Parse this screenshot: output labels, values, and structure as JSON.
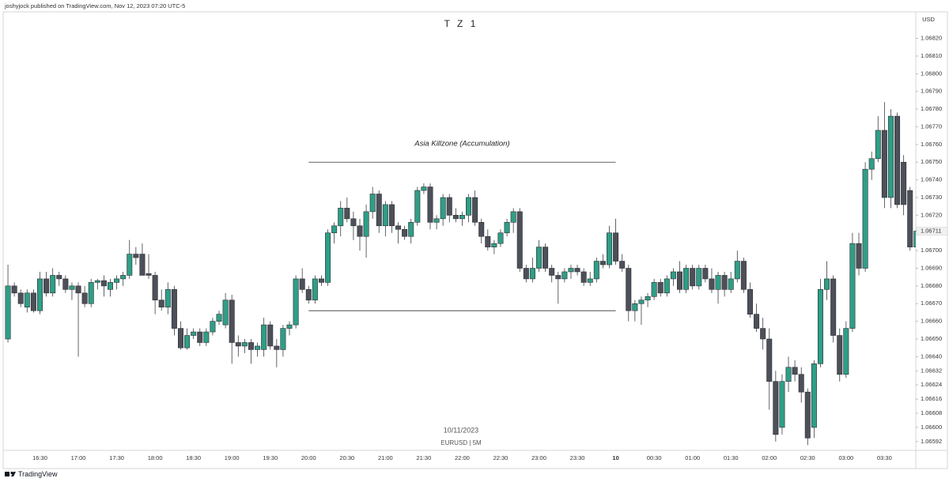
{
  "header": {
    "publisher": "joshyjock published on TradingView.com, Nov 12, 2023 07:20 UTC-5"
  },
  "footer": {
    "brand": "TradingView"
  },
  "chart_data": {
    "type": "candlestick",
    "title": "T Z 1",
    "date_label": "10/11/2023",
    "symbol_label": "EURUSD | 5M",
    "currency": "USD",
    "up_color": "#2f9e86",
    "down_color": "#4d5059",
    "grid": false,
    "ylim": [
      1.06587,
      1.06835
    ],
    "yticks": [
      {
        "value": 1.0682,
        "label": "1.06820"
      },
      {
        "value": 1.0681,
        "label": "1.06810"
      },
      {
        "value": 1.068,
        "label": "1.06800"
      },
      {
        "value": 1.0679,
        "label": "1.06790"
      },
      {
        "value": 1.0678,
        "label": "1.06780"
      },
      {
        "value": 1.0677,
        "label": "1.06770"
      },
      {
        "value": 1.0676,
        "label": "1.06760"
      },
      {
        "value": 1.0675,
        "label": "1.06750"
      },
      {
        "value": 1.0674,
        "label": "1.06740"
      },
      {
        "value": 1.0673,
        "label": "1.06730"
      },
      {
        "value": 1.0672,
        "label": "1.06720"
      },
      {
        "value": 1.067,
        "label": "1.06700"
      },
      {
        "value": 1.0669,
        "label": "1.06690"
      },
      {
        "value": 1.0668,
        "label": "1.06680"
      },
      {
        "value": 1.0667,
        "label": "1.06670"
      },
      {
        "value": 1.0666,
        "label": "1.06660"
      },
      {
        "value": 1.0665,
        "label": "1.06650"
      },
      {
        "value": 1.0664,
        "label": "1.06640"
      },
      1.06632,
      1.06624,
      1.06616,
      1.06608,
      {
        "value": 1.066,
        "label": "1.06600"
      },
      1.06592
    ],
    "last_price": 1.06711,
    "last_price_label": "1.06711",
    "zone": {
      "label": "Asia Killzone (Accumulation)",
      "high": 1.0675,
      "low": 1.06666
    },
    "categories": [
      null,
      null,
      null,
      null,
      null,
      "16:30",
      null,
      null,
      null,
      null,
      null,
      "17:00",
      null,
      null,
      null,
      null,
      null,
      "17:30",
      null,
      null,
      null,
      null,
      null,
      "18:00",
      null,
      null,
      null,
      null,
      null,
      "18:30",
      null,
      null,
      null,
      null,
      null,
      "19:00",
      null,
      null,
      null,
      null,
      null,
      "19:30",
      null,
      null,
      null,
      null,
      null,
      "20:00",
      null,
      null,
      null,
      null,
      null,
      "20:30",
      null,
      null,
      null,
      null,
      null,
      "21:00",
      null,
      null,
      null,
      null,
      null,
      "21:30",
      null,
      null,
      null,
      null,
      null,
      "22:00",
      null,
      null,
      null,
      null,
      null,
      "22:30",
      null,
      null,
      null,
      null,
      null,
      "23:00",
      null,
      null,
      null,
      null,
      null,
      "23:30",
      null,
      null,
      null,
      null,
      null,
      "10",
      null,
      null,
      null,
      null,
      null,
      "00:30",
      null,
      null,
      null,
      null,
      null,
      "01:00",
      null,
      null,
      null,
      null,
      null,
      "01:30",
      null,
      null,
      null,
      null,
      null,
      "02:00",
      null,
      null,
      null,
      null,
      null,
      "02:30",
      null,
      null,
      null,
      null,
      null,
      "03:00",
      null,
      null,
      null,
      null,
      null,
      "03:30",
      null,
      null,
      null,
      null,
      null
    ],
    "open": [
      1.0665,
      1.0668,
      1.06676,
      1.06668,
      1.06676,
      1.06666,
      1.06684,
      1.06676,
      1.06686,
      1.06684,
      1.06678,
      1.0668,
      1.06676,
      1.0667,
      1.06682,
      1.06683,
      1.06678,
      1.06682,
      1.06684,
      1.06686,
      1.06698,
      1.06698,
      1.06687,
      1.06686,
      1.06672,
      1.06668,
      1.06678,
      1.06656,
      1.06645,
      1.06652,
      1.06654,
      1.06648,
      1.06654,
      1.0666,
      1.06658,
      1.06672,
      1.06648,
      1.06646,
      1.06648,
      1.06644,
      1.06644,
      1.06658,
      1.06646,
      1.06644,
      1.06656,
      1.06658,
      1.06684,
      1.06678,
      1.06672,
      1.06684,
      1.06682,
      1.0671,
      1.06714,
      1.06724,
      1.06718,
      1.06714,
      1.06708,
      1.06722,
      1.06732,
      1.06714,
      1.06726,
      1.06714,
      1.06712,
      1.06708,
      1.06716,
      1.06734,
      1.06736,
      1.06716,
      1.06718,
      1.0673,
      1.0672,
      1.06718,
      1.0672,
      1.0673,
      1.06716,
      1.06708,
      1.06702,
      1.06704,
      1.0671,
      1.06716,
      1.06722,
      1.0669,
      1.06684,
      1.0669,
      1.06702,
      1.0669,
      1.06686,
      1.06684,
      1.06688,
      1.0669,
      1.06688,
      1.06682,
      1.06684,
      1.06694,
      1.06692,
      1.0671,
      1.06694,
      1.0669,
      1.06666,
      1.0667,
      1.06672,
      1.06674,
      1.06682,
      1.06676,
      1.06684,
      1.06688,
      1.06678,
      1.0669,
      1.0668,
      1.0669,
      1.06684,
      1.06678,
      1.06686,
      1.06678,
      1.06684,
      1.06694,
      1.06678,
      1.06664,
      1.06656,
      1.0665,
      1.06626,
      1.066,
      1.06626,
      1.06634,
      1.0663,
      1.0662,
      1.066,
      1.06636,
      1.06678,
      1.06684,
      1.06652,
      1.0663,
      1.06656,
      1.06704,
      1.0669,
      1.06746,
      1.06752,
      1.06768,
      1.0673,
      1.06776,
      1.0675,
      1.06734,
      1.06702
    ],
    "high": [
      1.06692,
      1.06682,
      1.06678,
      1.06678,
      1.06678,
      1.06688,
      1.06688,
      1.0669,
      1.06688,
      1.06686,
      1.06682,
      1.06682,
      1.0668,
      1.06684,
      1.06684,
      1.06686,
      1.06684,
      1.06686,
      1.06688,
      1.06706,
      1.06702,
      1.06704,
      1.06698,
      1.06688,
      1.06678,
      1.06682,
      1.0668,
      1.0666,
      1.06656,
      1.06656,
      1.06656,
      1.06656,
      1.06662,
      1.06666,
      1.06676,
      1.06675,
      1.06652,
      1.0665,
      1.0665,
      1.06648,
      1.06662,
      1.0666,
      1.0665,
      1.06658,
      1.0666,
      1.06686,
      1.0669,
      1.0668,
      1.06686,
      1.06686,
      1.06712,
      1.06716,
      1.06728,
      1.0673,
      1.06722,
      1.06718,
      1.06726,
      1.06736,
      1.06734,
      1.06728,
      1.06728,
      1.06716,
      1.06714,
      1.06718,
      1.06736,
      1.06738,
      1.06738,
      1.0672,
      1.06732,
      1.06732,
      1.06724,
      1.06722,
      1.06732,
      1.06734,
      1.06718,
      1.06712,
      1.06706,
      1.06712,
      1.06718,
      1.06724,
      1.06724,
      1.06692,
      1.06696,
      1.06706,
      1.06704,
      1.06692,
      1.06688,
      1.0669,
      1.06692,
      1.06692,
      1.0669,
      1.06688,
      1.06696,
      1.06698,
      1.06714,
      1.06718,
      1.06698,
      1.06692,
      1.06672,
      1.06674,
      1.06676,
      1.06684,
      1.06684,
      1.06686,
      1.0669,
      1.06694,
      1.06692,
      1.06692,
      1.06692,
      1.06692,
      1.0669,
      1.06688,
      1.06688,
      1.06688,
      1.067,
      1.06696,
      1.06682,
      1.0667,
      1.06662,
      1.06656,
      1.06632,
      1.0663,
      1.0664,
      1.06638,
      1.06634,
      1.06622,
      1.06638,
      1.06684,
      1.06694,
      1.06686,
      1.06656,
      1.0666,
      1.0671,
      1.0671,
      1.0675,
      1.06756,
      1.06776,
      1.06784,
      1.0678,
      1.06778,
      1.06754,
      1.06736,
      1.06712
    ],
    "low": [
      1.06648,
      1.06674,
      1.06668,
      1.06665,
      1.06665,
      1.06664,
      1.06674,
      1.06674,
      1.0668,
      1.06676,
      1.06672,
      1.0664,
      1.06668,
      1.06668,
      1.06678,
      1.06674,
      1.06674,
      1.06678,
      1.0668,
      1.06684,
      1.06692,
      1.06686,
      1.06684,
      1.06664,
      1.06666,
      1.06664,
      1.06652,
      1.06644,
      1.06644,
      1.0665,
      1.06646,
      1.06646,
      1.06652,
      1.06658,
      1.06656,
      1.06636,
      1.0664,
      1.06642,
      1.06636,
      1.0664,
      1.0664,
      1.06644,
      1.06634,
      1.0664,
      1.06652,
      1.06656,
      1.06676,
      1.0667,
      1.0667,
      1.0668,
      1.0668,
      1.06704,
      1.06708,
      1.06716,
      1.06706,
      1.067,
      1.06696,
      1.06718,
      1.0671,
      1.06708,
      1.0671,
      1.06704,
      1.06706,
      1.06704,
      1.06714,
      1.06732,
      1.06712,
      1.06712,
      1.06714,
      1.06716,
      1.06716,
      1.06714,
      1.06716,
      1.06714,
      1.06704,
      1.067,
      1.06698,
      1.06702,
      1.06708,
      1.0671,
      1.06688,
      1.06682,
      1.06682,
      1.06688,
      1.06688,
      1.06682,
      1.0667,
      1.06682,
      1.06684,
      1.06686,
      1.0668,
      1.0668,
      1.06682,
      1.0669,
      1.0669,
      1.06692,
      1.06688,
      1.0666,
      1.0666,
      1.06658,
      1.06668,
      1.06672,
      1.06674,
      1.06674,
      1.0668,
      1.06676,
      1.06676,
      1.06678,
      1.06678,
      1.06682,
      1.06676,
      1.0667,
      1.06674,
      1.06676,
      1.06682,
      1.06676,
      1.06662,
      1.06654,
      1.06644,
      1.0661,
      1.06592,
      1.06596,
      1.0662,
      1.06626,
      1.06614,
      1.0659,
      1.06594,
      1.06634,
      1.06672,
      1.06648,
      1.06626,
      1.06628,
      1.06654,
      1.06686,
      1.06688,
      1.0674,
      1.0675,
      1.06724,
      1.06724,
      1.06724,
      1.0672,
      1.067,
      1.067
    ],
    "close": [
      1.0668,
      1.06676,
      1.0667,
      1.06676,
      1.06666,
      1.06684,
      1.06676,
      1.06686,
      1.06684,
      1.06678,
      1.0668,
      1.06676,
      1.0667,
      1.06682,
      1.06683,
      1.0668,
      1.06682,
      1.06684,
      1.06686,
      1.06698,
      1.06696,
      1.06686,
      1.06686,
      1.06672,
      1.06668,
      1.06678,
      1.06656,
      1.06645,
      1.06652,
      1.06654,
      1.06648,
      1.06654,
      1.0666,
      1.06664,
      1.06672,
      1.06648,
      1.06646,
      1.06648,
      1.06644,
      1.06646,
      1.06658,
      1.06646,
      1.06644,
      1.06656,
      1.06658,
      1.06684,
      1.06678,
      1.06672,
      1.06684,
      1.06682,
      1.0671,
      1.06714,
      1.06724,
      1.06718,
      1.06714,
      1.06708,
      1.06722,
      1.06732,
      1.06714,
      1.06726,
      1.06714,
      1.06712,
      1.06708,
      1.06716,
      1.06734,
      1.06736,
      1.06716,
      1.06718,
      1.0673,
      1.0672,
      1.06718,
      1.0672,
      1.0673,
      1.06716,
      1.06708,
      1.06702,
      1.06704,
      1.0671,
      1.06716,
      1.06722,
      1.0669,
      1.06684,
      1.0669,
      1.06702,
      1.0669,
      1.06686,
      1.06684,
      1.06688,
      1.0669,
      1.06688,
      1.06682,
      1.06684,
      1.06694,
      1.06692,
      1.0671,
      1.06694,
      1.0669,
      1.06666,
      1.0667,
      1.06672,
      1.06674,
      1.06682,
      1.06676,
      1.06684,
      1.06688,
      1.06678,
      1.0669,
      1.0668,
      1.0669,
      1.06684,
      1.06678,
      1.06686,
      1.06678,
      1.06684,
      1.06694,
      1.06678,
      1.06664,
      1.06656,
      1.0665,
      1.06626,
      1.06596,
      1.06626,
      1.06634,
      1.0663,
      1.0662,
      1.06594,
      1.06636,
      1.06678,
      1.06684,
      1.06652,
      1.0663,
      1.06656,
      1.06704,
      1.0669,
      1.06746,
      1.06752,
      1.06768,
      1.0673,
      1.06776,
      1.06726,
      1.06726,
      1.06702,
      1.06711
    ]
  }
}
